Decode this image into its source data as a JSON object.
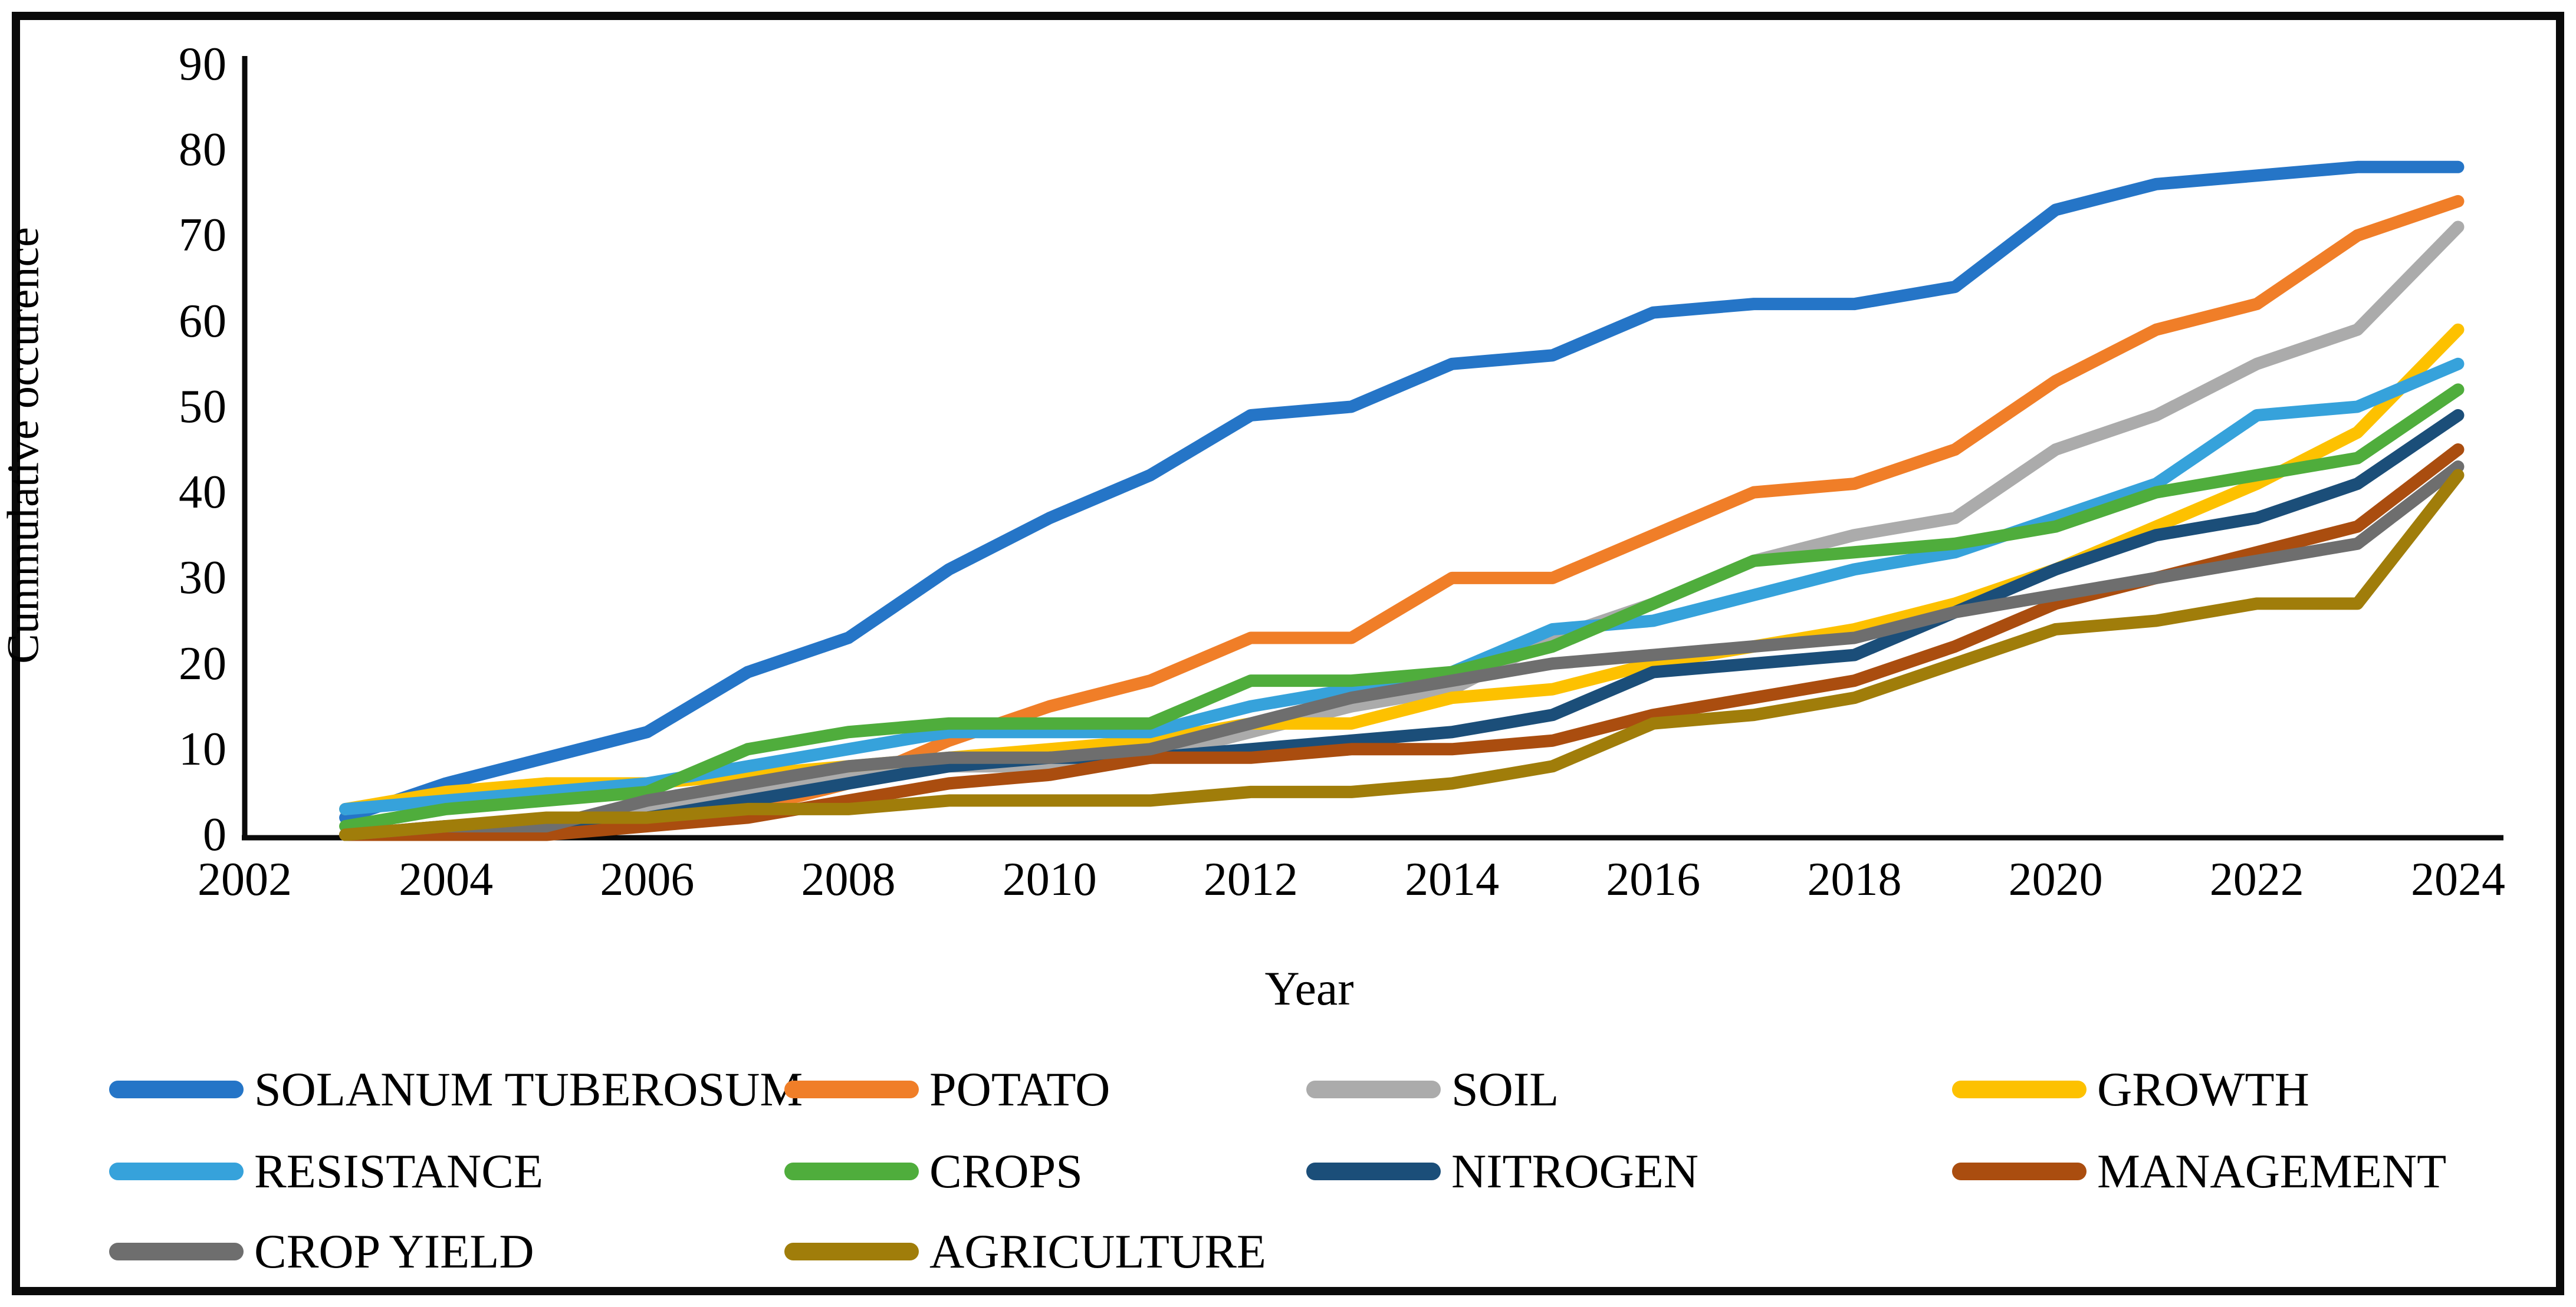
{
  "chart_data": {
    "type": "line",
    "title": "",
    "xlabel": "Year",
    "ylabel": "Cummulative occurence",
    "x": [
      2003,
      2004,
      2005,
      2006,
      2007,
      2008,
      2009,
      2010,
      2011,
      2012,
      2013,
      2014,
      2015,
      2016,
      2017,
      2018,
      2019,
      2020,
      2021,
      2022,
      2023,
      2024
    ],
    "x_axis_ticks": [
      2002,
      2004,
      2006,
      2008,
      2010,
      2012,
      2014,
      2016,
      2018,
      2020,
      2022,
      2024
    ],
    "y_axis_ticks": [
      0,
      10,
      20,
      30,
      40,
      50,
      60,
      70,
      80,
      90
    ],
    "ylim": [
      0,
      90
    ],
    "xlim": [
      2002,
      2024
    ],
    "grid": "off",
    "legend_position": "bottom",
    "series": [
      {
        "name": "SOLANUM TUBEROSUM",
        "color": "#2575C7",
        "values": [
          2,
          6,
          9,
          12,
          19,
          23,
          31,
          37,
          42,
          49,
          50,
          55,
          56,
          61,
          62,
          62,
          64,
          73,
          76,
          77,
          78,
          78
        ]
      },
      {
        "name": "POTATO",
        "color": "#F07E28",
        "values": [
          0,
          0,
          1,
          2,
          3,
          6,
          11,
          15,
          18,
          23,
          23,
          30,
          30,
          35,
          40,
          41,
          45,
          53,
          59,
          62,
          70,
          74
        ]
      },
      {
        "name": "SOIL",
        "color": "#ABABAB",
        "values": [
          0,
          1,
          1,
          3,
          5,
          7,
          8,
          8,
          9,
          12,
          15,
          17,
          23,
          27,
          32,
          35,
          37,
          45,
          49,
          55,
          59,
          71
        ]
      },
      {
        "name": "GROWTH",
        "color": "#FDC100",
        "values": [
          3,
          5,
          6,
          6,
          7,
          8,
          9,
          10,
          11,
          13,
          13,
          16,
          17,
          20,
          22,
          24,
          27,
          31,
          36,
          41,
          47,
          59
        ]
      },
      {
        "name": "RESISTANCE",
        "color": "#36A2DB",
        "values": [
          3,
          4,
          5,
          6,
          8,
          10,
          12,
          12,
          12,
          15,
          17,
          19,
          24,
          25,
          28,
          31,
          33,
          37,
          41,
          49,
          50,
          55
        ]
      },
      {
        "name": "CROPS",
        "color": "#4FAD3C",
        "values": [
          1,
          3,
          4,
          5,
          10,
          12,
          13,
          13,
          13,
          18,
          18,
          19,
          22,
          27,
          32,
          33,
          34,
          36,
          40,
          42,
          44,
          52
        ]
      },
      {
        "name": "NITROGEN",
        "color": "#1B4E79",
        "values": [
          0,
          0,
          1,
          2,
          4,
          6,
          8,
          9,
          9,
          10,
          11,
          12,
          14,
          19,
          20,
          21,
          26,
          31,
          35,
          37,
          41,
          49
        ]
      },
      {
        "name": "MANAGEMENT",
        "color": "#AA4D0F",
        "values": [
          0,
          0,
          0,
          1,
          2,
          4,
          6,
          7,
          9,
          9,
          10,
          10,
          11,
          14,
          16,
          18,
          22,
          27,
          30,
          33,
          36,
          45
        ]
      },
      {
        "name": "CROP YIELD",
        "color": "#6E6E6E",
        "values": [
          0,
          1,
          1,
          4,
          6,
          8,
          9,
          9,
          10,
          13,
          16,
          18,
          20,
          21,
          22,
          23,
          26,
          28,
          30,
          32,
          34,
          43
        ]
      },
      {
        "name": "AGRICULTURE",
        "color": "#A07D0A",
        "values": [
          0,
          1,
          2,
          2,
          3,
          3,
          4,
          4,
          4,
          5,
          5,
          6,
          8,
          13,
          14,
          16,
          20,
          24,
          25,
          27,
          27,
          42
        ]
      }
    ]
  }
}
